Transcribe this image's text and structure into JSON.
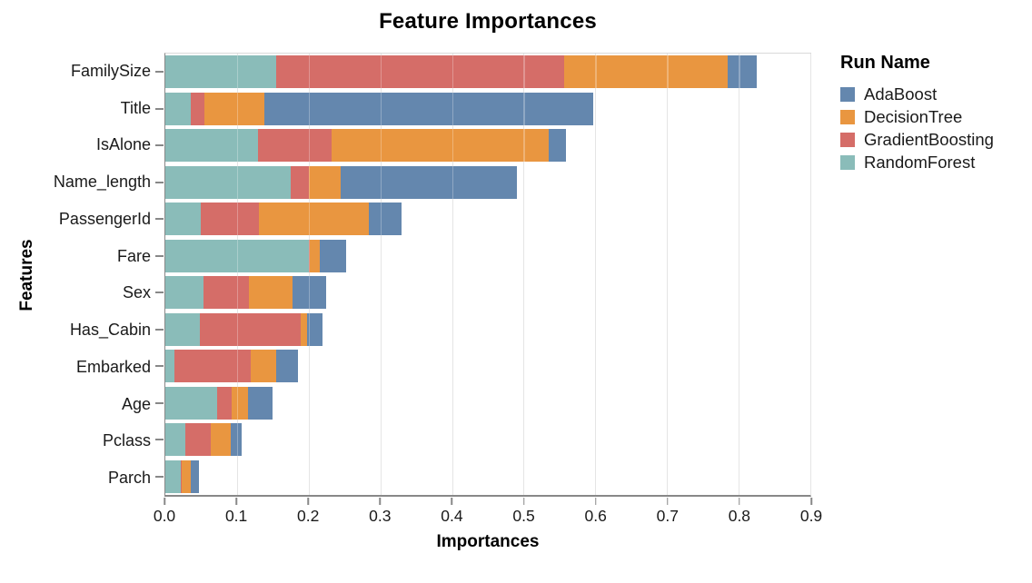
{
  "chart_data": {
    "type": "bar",
    "orientation": "horizontal",
    "stacked": true,
    "title": "Feature Importances",
    "xlabel": "Importances",
    "ylabel": "Features",
    "xlim": [
      0,
      0.9
    ],
    "xtick_labels": [
      "0.0",
      "0.1",
      "0.2",
      "0.3",
      "0.4",
      "0.5",
      "0.6",
      "0.7",
      "0.8",
      "0.9"
    ],
    "grid": "vertical",
    "categories": [
      "FamilySize",
      "Title",
      "IsAlone",
      "Name_length",
      "PassengerId",
      "Fare",
      "Sex",
      "Has_Cabin",
      "Embarked",
      "Age",
      "Pclass",
      "Parch"
    ],
    "stack_order": "left-to-right: RandomForest, GradientBoosting, DecisionTree, AdaBoost",
    "series": [
      {
        "name": "RandomForest",
        "color": "#8abcb9",
        "values": [
          0.155,
          0.036,
          0.129,
          0.175,
          0.05,
          0.2,
          0.053,
          0.048,
          0.013,
          0.072,
          0.028,
          0.021
        ]
      },
      {
        "name": "GradientBoosting",
        "color": "#d56d68",
        "values": [
          0.402,
          0.019,
          0.103,
          0.025,
          0.08,
          0.002,
          0.064,
          0.141,
          0.106,
          0.021,
          0.035,
          0.002
        ]
      },
      {
        "name": "DecisionTree",
        "color": "#e99640",
        "values": [
          0.228,
          0.083,
          0.303,
          0.045,
          0.154,
          0.014,
          0.06,
          0.009,
          0.036,
          0.022,
          0.028,
          0.013
        ]
      },
      {
        "name": "AdaBoost",
        "color": "#6487ae",
        "values": [
          0.04,
          0.459,
          0.024,
          0.245,
          0.046,
          0.036,
          0.047,
          0.021,
          0.03,
          0.035,
          0.016,
          0.011
        ]
      }
    ],
    "totals": [
      0.825,
      0.597,
      0.559,
      0.49,
      0.33,
      0.252,
      0.224,
      0.219,
      0.185,
      0.15,
      0.107,
      0.047
    ],
    "legend": {
      "title": "Run Name",
      "position": "top-right",
      "entries": [
        {
          "label": "AdaBoost",
          "color": "#6487ae"
        },
        {
          "label": "DecisionTree",
          "color": "#e99640"
        },
        {
          "label": "GradientBoosting",
          "color": "#d56d68"
        },
        {
          "label": "RandomForest",
          "color": "#8abcb9"
        }
      ]
    }
  }
}
